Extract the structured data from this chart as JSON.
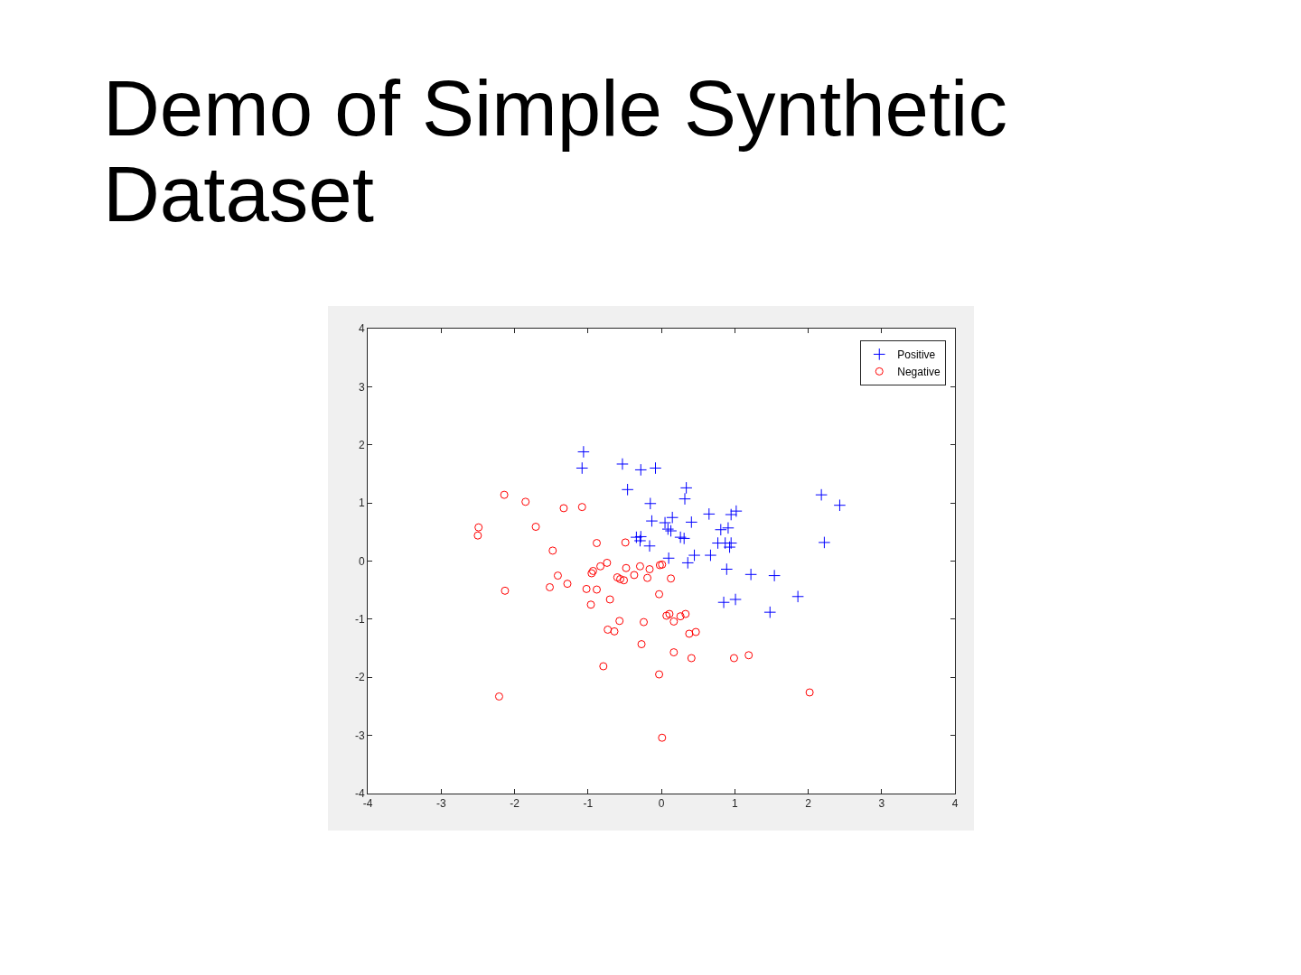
{
  "chart_data": {
    "type": "scatter",
    "title": "Demo of Simple Synthetic Dataset",
    "xlim": [
      -4,
      4
    ],
    "xticks": [
      -4,
      -3,
      -2,
      -1,
      0,
      1,
      2,
      3,
      4
    ],
    "ylim": [
      -4,
      4
    ],
    "yticks": [
      -4,
      -3,
      -2,
      -1,
      0,
      1,
      2,
      3,
      4
    ],
    "legend": "top right",
    "series": [
      {
        "name": "Positive",
        "color": "#0000ff",
        "marker": "cross",
        "x": [
          -1.06,
          -1.08,
          -0.53,
          -0.28,
          -0.08,
          -0.46,
          0.34,
          0.32,
          -0.15,
          -0.13,
          -0.34,
          -0.28,
          -0.29,
          -0.16,
          1.02,
          0.95,
          0.65,
          0.15,
          0.05,
          0.41,
          0.09,
          0.13,
          0.81,
          0.91,
          0.26,
          0.31,
          0.77,
          0.87,
          0.95,
          0.93,
          0.1,
          0.36,
          0.45,
          0.67,
          0.89,
          1.22,
          1.54,
          2.18,
          2.43,
          2.22,
          0.85,
          1.01,
          1.86,
          1.48
        ],
        "values": [
          1.88,
          1.6,
          1.67,
          1.57,
          1.6,
          1.23,
          1.26,
          1.07,
          0.99,
          0.69,
          0.41,
          0.42,
          0.35,
          0.26,
          0.86,
          0.8,
          0.81,
          0.75,
          0.66,
          0.67,
          0.55,
          0.52,
          0.54,
          0.57,
          0.41,
          0.39,
          0.31,
          0.31,
          0.31,
          0.24,
          0.05,
          -0.03,
          0.1,
          0.1,
          -0.14,
          -0.23,
          -0.25,
          1.14,
          0.96,
          0.32,
          -0.71,
          -0.66,
          -0.61,
          -0.88
        ]
      },
      {
        "name": "Negative",
        "color": "#ff0000",
        "marker": "circle",
        "x": [
          -2.14,
          -1.85,
          -1.33,
          -1.08,
          -2.49,
          -2.5,
          -1.71,
          -1.48,
          -0.88,
          -0.49,
          -0.74,
          -0.83,
          -0.93,
          -0.95,
          -0.48,
          -0.29,
          -0.16,
          -0.02,
          0.01,
          -1.41,
          -2.13,
          -1.52,
          -1.28,
          -1.02,
          -0.88,
          -0.96,
          -0.7,
          -0.6,
          -0.56,
          -0.51,
          -0.37,
          -0.19,
          0.13,
          -0.03,
          0.07,
          0.11,
          0.17,
          0.26,
          0.33,
          0.38,
          0.47,
          -0.57,
          -0.73,
          -0.64,
          -0.24,
          -0.27,
          -0.79,
          0.17,
          0.41,
          0.99,
          1.19,
          -0.03,
          -2.21,
          2.02,
          0.01
        ],
        "values": [
          1.14,
          1.02,
          0.91,
          0.93,
          0.58,
          0.44,
          0.59,
          0.18,
          0.31,
          0.32,
          -0.03,
          -0.09,
          -0.17,
          -0.21,
          -0.12,
          -0.09,
          -0.14,
          -0.07,
          -0.06,
          -0.25,
          -0.51,
          -0.45,
          -0.39,
          -0.48,
          -0.49,
          -0.75,
          -0.66,
          -0.28,
          -0.31,
          -0.33,
          -0.24,
          -0.29,
          -0.3,
          -0.57,
          -0.94,
          -0.91,
          -1.04,
          -0.95,
          -0.91,
          -1.25,
          -1.22,
          -1.03,
          -1.18,
          -1.21,
          -1.05,
          -1.43,
          -1.81,
          -1.57,
          -1.67,
          -1.67,
          -1.62,
          -1.95,
          -2.33,
          -2.26,
          -3.04
        ]
      }
    ]
  }
}
